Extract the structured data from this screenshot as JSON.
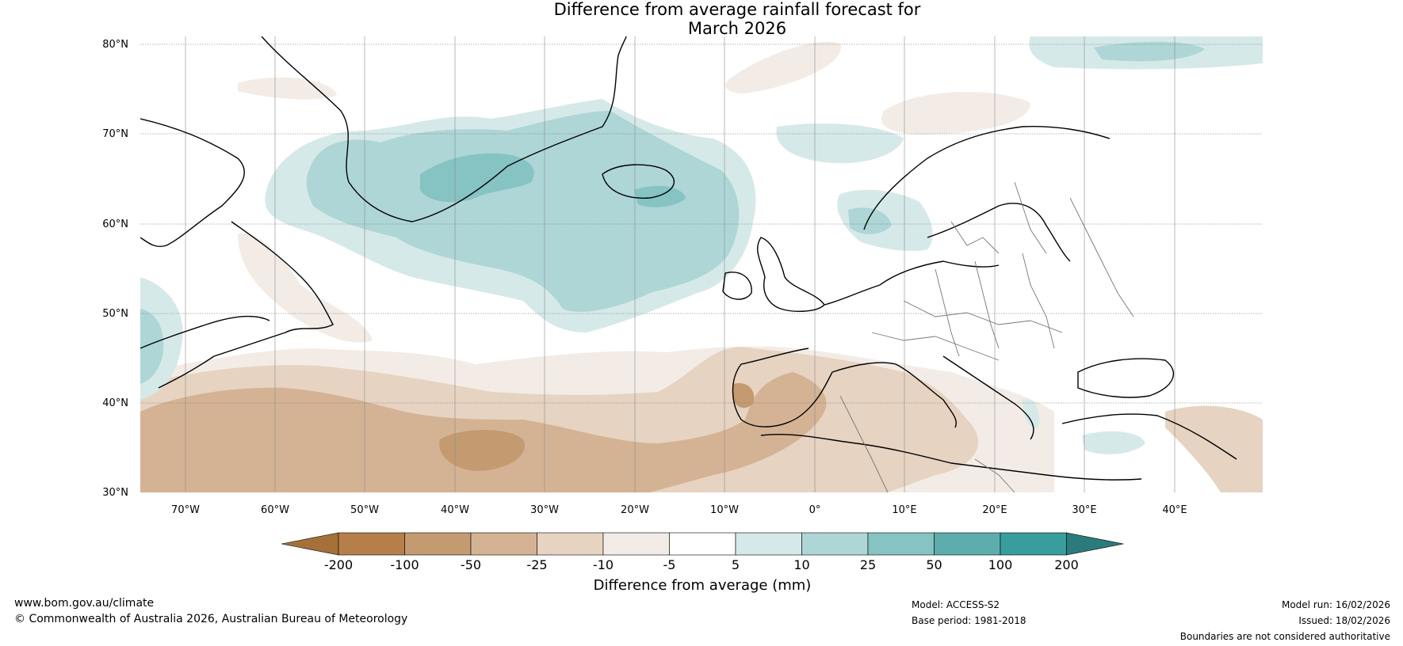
{
  "title": {
    "line1": "Difference from average rainfall forecast for",
    "line2": "March 2026"
  },
  "map": {
    "lat_labels": [
      "80°N",
      "70°N",
      "60°N",
      "50°N",
      "40°N",
      "30°N"
    ],
    "lon_labels": [
      "70°W",
      "60°W",
      "50°W",
      "40°W",
      "30°W",
      "20°W",
      "10°W",
      "0°",
      "10°E",
      "20°E",
      "30°E",
      "40°E"
    ]
  },
  "colorbar": {
    "ticks": [
      "-200",
      "-100",
      "-50",
      "-25",
      "-10",
      "-5",
      "5",
      "10",
      "25",
      "50",
      "100",
      "200"
    ],
    "colors": [
      "#a5703a",
      "#b67f49",
      "#c49a71",
      "#d4b394",
      "#e6d3c1",
      "#f3ece6",
      "#ffffff",
      "#d6e9e9",
      "#aed6d6",
      "#86c3c3",
      "#5eadad",
      "#379d9d",
      "#2a7b7b"
    ],
    "label": "Difference from average (mm)"
  },
  "footer": {
    "url": "www.bom.gov.au/climate",
    "copyright": "© Commonwealth of Australia 2026, Australian Bureau of Meteorology",
    "model": "Model: ACCESS-S2",
    "base_period": "Base period: 1981-2018",
    "model_run": "Model run: 16/02/2026",
    "issued": "Issued: 18/02/2026",
    "disclaimer": "Boundaries are not considered authoritative"
  }
}
